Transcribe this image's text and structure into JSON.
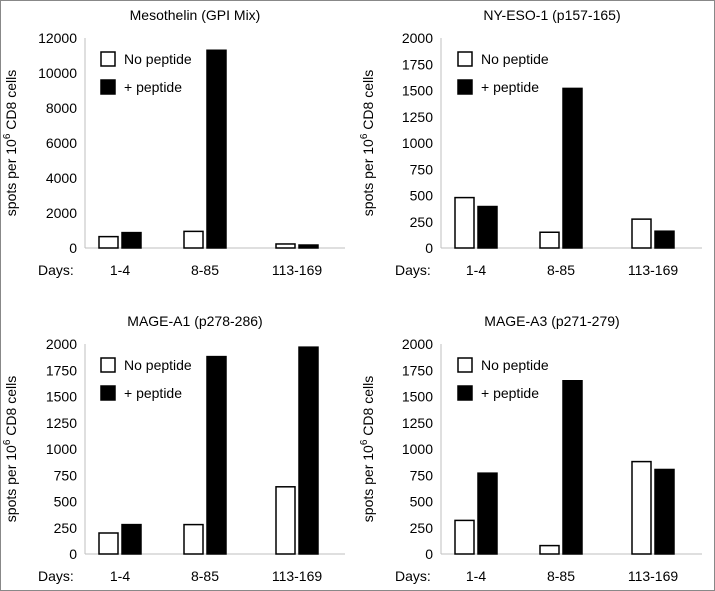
{
  "colors": {
    "no_peptide_fill": "#ffffff",
    "peptide_fill": "#000000",
    "bar_stroke": "#000000",
    "axis": "#bfbfbf"
  },
  "ylabel_parts": {
    "pre": "spots per 10",
    "sup": "6",
    "post": " CD8 cells"
  },
  "days_label": "Days:",
  "chart_data": [
    {
      "type": "bar",
      "title": "Mesothelin (GPI Mix)",
      "categories": [
        "1-4",
        "8-85",
        "113-169"
      ],
      "xlabel": "Days:",
      "ylabel": "spots per 10^6 CD8 cells",
      "ylim": [
        0,
        12000
      ],
      "yticks": [
        0,
        2000,
        4000,
        6000,
        8000,
        10000,
        12000
      ],
      "legend_position": "top-left",
      "series": [
        {
          "name": "No peptide",
          "values": [
            650,
            950,
            230
          ]
        },
        {
          "name": "+ peptide",
          "values": [
            880,
            11300,
            170
          ]
        }
      ]
    },
    {
      "type": "bar",
      "title": "NY-ESO-1 (p157-165)",
      "categories": [
        "1-4",
        "8-85",
        "113-169"
      ],
      "xlabel": "Days:",
      "ylabel": "spots per 10^6 CD8 cells",
      "ylim": [
        0,
        2000
      ],
      "yticks": [
        0,
        250,
        500,
        750,
        1000,
        1250,
        1500,
        1750,
        2000
      ],
      "legend_position": "top-left",
      "series": [
        {
          "name": "No peptide",
          "values": [
            480,
            150,
            275
          ]
        },
        {
          "name": "+ peptide",
          "values": [
            395,
            1520,
            160
          ]
        }
      ]
    },
    {
      "type": "bar",
      "title": "MAGE-A1 (p278-286)",
      "categories": [
        "1-4",
        "8-85",
        "113-169"
      ],
      "xlabel": "Days:",
      "ylabel": "spots per 10^6 CD8 cells",
      "ylim": [
        0,
        2000
      ],
      "yticks": [
        0,
        250,
        500,
        750,
        1000,
        1250,
        1500,
        1750,
        2000
      ],
      "legend_position": "top-left",
      "series": [
        {
          "name": "No peptide",
          "values": [
            200,
            280,
            640
          ]
        },
        {
          "name": "+ peptide",
          "values": [
            280,
            1880,
            1970
          ]
        }
      ]
    },
    {
      "type": "bar",
      "title": "MAGE-A3 (p271-279)",
      "categories": [
        "1-4",
        "8-85",
        "113-169"
      ],
      "xlabel": "Days:",
      "ylabel": "spots per 10^6 CD8 cells",
      "ylim": [
        0,
        2000
      ],
      "yticks": [
        0,
        250,
        500,
        750,
        1000,
        1250,
        1500,
        1750,
        2000
      ],
      "legend_position": "top-left",
      "series": [
        {
          "name": "No peptide",
          "values": [
            320,
            80,
            880
          ]
        },
        {
          "name": "+ peptide",
          "values": [
            770,
            1650,
            805
          ]
        }
      ]
    }
  ]
}
